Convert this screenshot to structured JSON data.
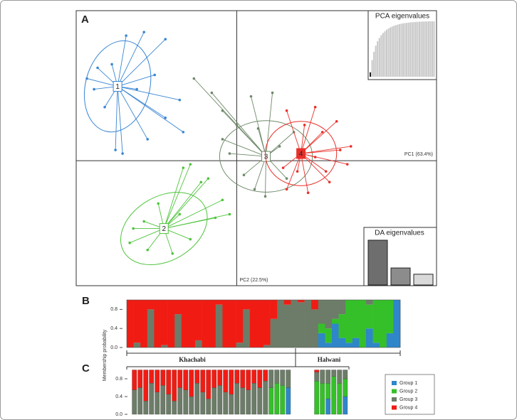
{
  "chart_data": [
    {
      "type": "scatter",
      "panel": "A",
      "x_label": "PC1 (63.4%)",
      "y_label": "PC2 (22.5%)",
      "xlim": [
        -4.5,
        5.6
      ],
      "ylim": [
        -3.5,
        4.2
      ],
      "series": [
        {
          "name": "1",
          "color": "#3a86d4",
          "center": [
            -3.34,
            2.08
          ],
          "ellipse": [
            0.9,
            1.3,
            15
          ],
          "x": [
            -2.6,
            -3.1,
            -2.0,
            -3.9,
            -4.0,
            -2.3,
            -1.6,
            -2.0,
            -1.5,
            -3.4,
            -3.2,
            -2.5,
            -3.7,
            -4.2,
            -2.8,
            -3.5
          ],
          "y": [
            3.6,
            3.5,
            3.4,
            2.6,
            2.0,
            2.4,
            1.7,
            1.2,
            0.8,
            0.3,
            0.2,
            0.6,
            1.5,
            2.3,
            2.0,
            2.7
          ]
        },
        {
          "name": "2",
          "color": "#4fc43c",
          "center": [
            -2.04,
            -1.9
          ],
          "ellipse": [
            1.3,
            0.9,
            -30
          ],
          "x": [
            -1.3,
            -1.5,
            -0.8,
            -0.4,
            -1.0,
            -2.9,
            -3.0,
            -2.5,
            -1.8,
            -1.3,
            -0.6,
            -2.2,
            -2.6,
            -1.6,
            -0.2
          ],
          "y": [
            -0.1,
            -0.2,
            -0.5,
            -1.1,
            -0.6,
            -1.9,
            -2.3,
            -2.5,
            -2.6,
            -2.2,
            -1.6,
            -1.2,
            -1.7,
            -1.5,
            -1.5
          ]
        },
        {
          "name": "3",
          "color": "#6f8a6a",
          "center": [
            0.82,
            0.12
          ],
          "ellipse": [
            1.3,
            1.0,
            0
          ],
          "x": [
            -1.2,
            -0.7,
            -0.4,
            0.0,
            0.4,
            1.0,
            -0.4,
            0.2,
            0.5,
            1.4,
            1.6,
            0.8,
            1.2,
            -0.2,
            0.6
          ],
          "y": [
            2.3,
            1.9,
            1.4,
            1.0,
            1.8,
            1.9,
            0.6,
            -0.4,
            -0.8,
            -0.5,
            0.8,
            -1.0,
            0.4,
            0.2,
            0.9
          ]
        },
        {
          "name": "4",
          "color": "#e8302a",
          "center": [
            1.8,
            0.2
          ],
          "ellipse": [
            1.0,
            0.9,
            0
          ],
          "x": [
            1.4,
            2.2,
            2.8,
            3.2,
            3.1,
            2.6,
            2.0,
            1.4,
            1.7,
            2.4,
            2.2,
            2.9,
            1.9,
            1.3,
            2.5
          ],
          "y": [
            1.4,
            1.5,
            1.1,
            0.4,
            -0.1,
            -0.6,
            -0.9,
            -0.8,
            -0.3,
            0.8,
            0.1,
            0.3,
            1.0,
            -0.2,
            -0.3
          ]
        }
      ]
    },
    {
      "type": "bar",
      "title": "PCA eigenvalues",
      "ylim": [
        0,
        100
      ],
      "values": [
        8,
        30,
        45,
        56,
        64,
        70,
        75,
        79,
        82,
        85,
        87,
        89,
        90.5,
        92,
        93,
        94,
        95,
        95.7,
        96.3,
        96.8,
        97.2,
        97.6,
        98,
        98.3,
        98.6,
        98.9,
        99.1,
        99.3,
        99.5,
        99.6,
        99.7,
        99.8,
        99.9,
        100,
        100,
        100
      ],
      "colors": [
        "#222222",
        "#c8c8c8",
        "#c8c8c8",
        "#c8c8c8",
        "#c8c8c8",
        "#c8c8c8",
        "#c8c8c8",
        "#c8c8c8",
        "#c8c8c8",
        "#c8c8c8",
        "#c8c8c8",
        "#c8c8c8",
        "#c8c8c8",
        "#c8c8c8",
        "#c8c8c8",
        "#c8c8c8",
        "#c8c8c8",
        "#c8c8c8",
        "#c8c8c8",
        "#c8c8c8",
        "#c8c8c8",
        "#c8c8c8",
        "#c8c8c8",
        "#c8c8c8",
        "#c8c8c8",
        "#c8c8c8",
        "#c8c8c8",
        "#c8c8c8",
        "#c8c8c8",
        "#c8c8c8",
        "#c8c8c8",
        "#c8c8c8",
        "#c8c8c8",
        "#c8c8c8",
        "#c8c8c8",
        "#c8c8c8"
      ]
    },
    {
      "type": "bar",
      "title": "DA eigenvalues",
      "ylim": [
        0,
        100
      ],
      "values": [
        100,
        38,
        24
      ],
      "colors": [
        "#6e6e6e",
        "#8c8c8c",
        "#d9d9d9"
      ]
    },
    {
      "type": "stacked_bar",
      "panel": "B",
      "y_label": "Membership probability",
      "ylim": [
        0,
        1
      ],
      "yticks": [
        {
          "value": 0,
          "label": "0.0"
        },
        0.4,
        0.8
      ],
      "populations": [
        "Khachabi",
        "Halwani"
      ],
      "series": [
        {
          "color": "#2f86c8",
          "values": [
            0,
            0,
            0,
            0,
            0,
            0,
            0,
            0,
            0,
            0,
            0,
            0,
            0,
            0,
            0,
            0,
            0,
            0,
            0,
            0,
            0,
            0,
            0,
            0,
            0,
            0,
            0,
            0,
            0.3,
            0.1,
            0.5,
            0.2,
            0.1,
            0.2,
            0,
            0.4,
            0.1,
            0,
            0.3,
            1
          ]
        },
        {
          "color": "#35c02a",
          "values": [
            0,
            0,
            0,
            0,
            0,
            0,
            0,
            0,
            0,
            0,
            0,
            0,
            0,
            0,
            0,
            0,
            0,
            0,
            0,
            0,
            0,
            0,
            0,
            0,
            0,
            0,
            0,
            0,
            0.2,
            0.3,
            0.1,
            0.5,
            0.9,
            0.8,
            1,
            0.5,
            0.9,
            1,
            0.7,
            0
          ]
        },
        {
          "color": "#6c7c68",
          "values": [
            0,
            0.1,
            0,
            0.8,
            0,
            0.05,
            0,
            0.7,
            0,
            0,
            0.15,
            0,
            0,
            0.9,
            0,
            0,
            0.1,
            0.8,
            0,
            0,
            0.05,
            0.6,
            1,
            0.9,
            1,
            0.95,
            1,
            0.8,
            0.5,
            0.6,
            0.4,
            0.3,
            0,
            0,
            0,
            0.1,
            0,
            0,
            0,
            0
          ]
        },
        {
          "color": "#f01c14",
          "values": [
            1,
            0.9,
            1,
            0.2,
            1,
            0.95,
            1,
            0.3,
            1,
            1,
            0.85,
            1,
            1,
            0.1,
            1,
            1,
            0.9,
            0.2,
            1,
            1,
            0.95,
            0.4,
            0,
            0.1,
            0,
            0.05,
            0,
            0.2,
            0,
            0,
            0,
            0,
            0,
            0,
            0,
            0,
            0,
            0,
            0,
            0
          ]
        }
      ]
    },
    {
      "type": "stacked_bar",
      "panel": "C",
      "legend": "right",
      "ylim": [
        0,
        1
      ],
      "yticks": [
        {
          "value": 0,
          "label": "0.0"
        },
        0.4,
        0.8
      ],
      "series": [
        {
          "name": "Group 1",
          "color": "#2f86c8",
          "values": [
            0,
            0,
            0,
            0,
            0,
            0,
            0,
            0,
            0,
            0,
            0,
            0,
            0,
            0,
            0,
            0,
            0,
            0,
            0,
            0,
            0,
            0,
            0,
            0,
            0,
            0,
            0,
            0.6,
            null,
            null,
            null,
            null,
            0,
            0,
            0.35,
            0,
            0,
            0.4
          ]
        },
        {
          "name": "Group 2",
          "color": "#35c02a",
          "values": [
            0,
            0,
            0,
            0,
            0,
            0,
            0,
            0,
            0,
            0,
            0,
            0,
            0,
            0,
            0,
            0,
            0,
            0,
            0,
            0,
            0,
            0,
            0,
            0,
            0.6,
            0.7,
            0.65,
            0,
            null,
            null,
            null,
            null,
            0.75,
            0.7,
            0.35,
            0.85,
            0.7,
            0.4
          ]
        },
        {
          "name": "Group 3",
          "color": "#6c7c68",
          "values": [
            0.55,
            0.6,
            0.3,
            0.7,
            0.5,
            0.65,
            0.45,
            0.3,
            0.6,
            0.55,
            0.4,
            0.7,
            0.5,
            0.35,
            0.6,
            0.65,
            0.5,
            0.45,
            0.7,
            0.6,
            0.55,
            0.7,
            0.6,
            0.75,
            0.4,
            0.3,
            0.35,
            0.4,
            null,
            null,
            null,
            null,
            0.2,
            0.3,
            0.3,
            0.15,
            0.3,
            0.2
          ]
        },
        {
          "name": "Group 4",
          "color": "#f01c14",
          "values": [
            0.45,
            0.4,
            0.7,
            0.3,
            0.5,
            0.35,
            0.55,
            0.7,
            0.4,
            0.45,
            0.6,
            0.3,
            0.5,
            0.65,
            0.4,
            0.35,
            0.5,
            0.55,
            0.3,
            0.4,
            0.45,
            0.3,
            0.4,
            0.25,
            0,
            0,
            0,
            0,
            null,
            null,
            null,
            null,
            0.05,
            0,
            0,
            0,
            0,
            0
          ]
        }
      ]
    }
  ]
}
